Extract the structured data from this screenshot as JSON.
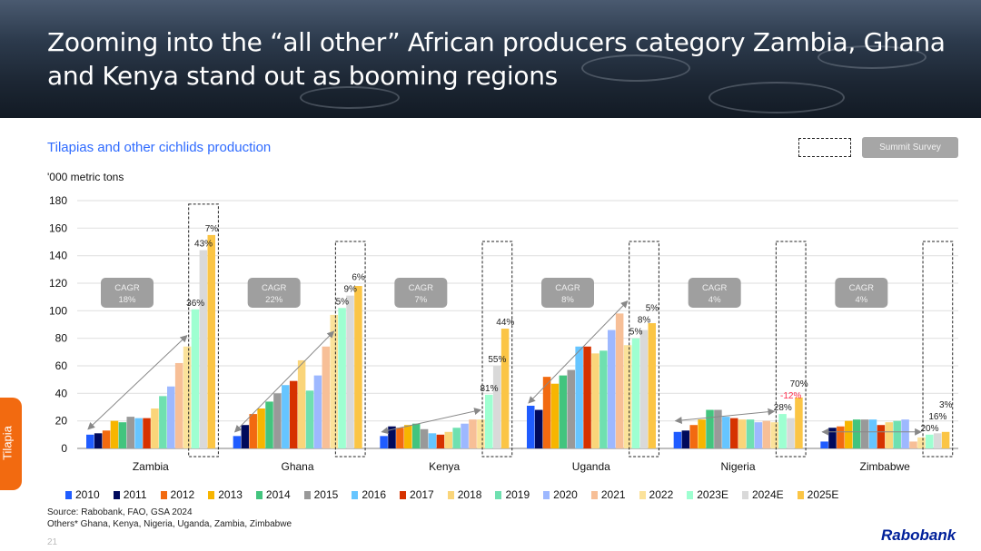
{
  "header": {
    "title": "Zooming into the “all other” African producers category Zambia, Ghana and Kenya stand out as booming regions"
  },
  "legend_box": {
    "survey_label": "Summit Survey"
  },
  "side_tab": "Tilapia",
  "footer": {
    "source": "Source: Rabobank, FAO, GSA 2024",
    "others": "Others* Ghana, Kenya, Nigeria, Uganda, Zambia, Zimbabwe",
    "page": "21",
    "brand": "Rabobank"
  },
  "chart_data": {
    "type": "bar",
    "title": "Tilapias and other cichlids production",
    "ylabel": "'000 metric tons",
    "ylim": [
      0,
      180
    ],
    "yticks": [
      0,
      20,
      40,
      60,
      80,
      100,
      120,
      140,
      160,
      180
    ],
    "grid": true,
    "legend_position": "bottom",
    "categories": [
      "Zambia",
      "Ghana",
      "Kenya",
      "Uganda",
      "Nigeria",
      "Zimbabwe"
    ],
    "series_names": [
      "2010",
      "2011",
      "2012",
      "2013",
      "2014",
      "2015",
      "2016",
      "2017",
      "2018",
      "2019",
      "2020",
      "2021",
      "2022",
      "2023E",
      "2024E",
      "2025E"
    ],
    "series_colors": [
      "#1f5cff",
      "#000a5c",
      "#f26a10",
      "#f7b500",
      "#43c47e",
      "#999999",
      "#66c5ff",
      "#d63200",
      "#fad57a",
      "#6fe0b0",
      "#9db8ff",
      "#f7bf97",
      "#fbe29a",
      "#9effd1",
      "#d9d9d9",
      "#fbc545"
    ],
    "values": {
      "Zambia": [
        10,
        11,
        13,
        20,
        19,
        23,
        22,
        22,
        29,
        38,
        45,
        62,
        74,
        101,
        144,
        155
      ],
      "Ghana": [
        9,
        17,
        25,
        29,
        34,
        40,
        46,
        49,
        64,
        42,
        53,
        74,
        97,
        102,
        111,
        118
      ],
      "Kenya": [
        9,
        16,
        15,
        17,
        18,
        14,
        11,
        10,
        12,
        15,
        18,
        21,
        21,
        39,
        60,
        87
      ],
      "Uganda": [
        31,
        28,
        52,
        47,
        53,
        57,
        74,
        74,
        69,
        71,
        86,
        98,
        75,
        80,
        86,
        91
      ],
      "Nigeria": [
        12,
        13,
        17,
        21,
        28,
        28,
        23,
        22,
        21,
        21,
        19,
        20,
        19,
        25,
        22,
        37
      ],
      "Zimbabwe": [
        5,
        15,
        16,
        20,
        21,
        21,
        21,
        17,
        19,
        20,
        21,
        5,
        8,
        10,
        11,
        12
      ]
    },
    "cagr": {
      "label": "CAGR",
      "values": [
        "18%",
        "22%",
        "7%",
        "8%",
        "4%",
        "4%"
      ]
    },
    "growth_labels": {
      "Zambia": [
        "36%",
        "43%",
        "7%"
      ],
      "Ghana": [
        "5%",
        "9%",
        "6%"
      ],
      "Kenya": [
        "81%",
        "55%",
        "44%"
      ],
      "Uganda": [
        "5%",
        "8%",
        "5%"
      ],
      "Nigeria": [
        "28%",
        "-12%",
        "70%"
      ],
      "Zimbabwe": [
        "20%",
        "16%",
        "3%"
      ]
    },
    "negative_color": "#ff2a4a",
    "trend_arrows": {
      "Zambia": [
        14,
        82
      ],
      "Ghana": [
        12,
        85
      ],
      "Kenya": [
        12,
        28
      ],
      "Uganda": [
        33,
        107
      ],
      "Nigeria": [
        20,
        27
      ],
      "Zimbabwe": [
        12,
        12
      ]
    }
  }
}
